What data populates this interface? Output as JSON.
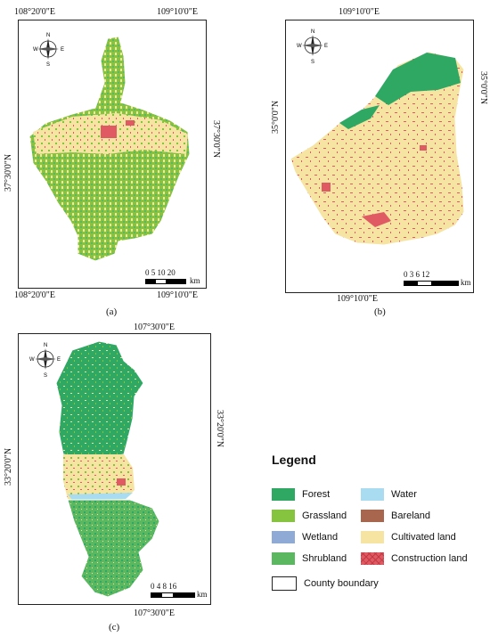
{
  "colors": {
    "forest": "#2fa864",
    "grassland": "#86c440",
    "wetland": "#8faad4",
    "shrubland": "#5cb860",
    "water": "#a9dcf0",
    "bareland": "#a8664f",
    "cultivated": "#f6e4a2",
    "construction": "#e05a63",
    "boundary": "#ffffff"
  },
  "compass": {
    "n": "N",
    "s": "S",
    "e": "E",
    "w": "W"
  },
  "panels": {
    "a": {
      "label": "(a)",
      "top_coord": "108°20'0\"E",
      "top_coord_right": "109°10'0\"E",
      "bottom_coord": "108°20'0\"E",
      "bottom_coord_right": "109°10'0\"E",
      "left_coord": "37°30'0\"N",
      "right_coord": "37°30'0\"N",
      "scale_nums": "0   5  10      20",
      "scale_unit": "km"
    },
    "b": {
      "label": "(b)",
      "top_coord": "109°10'0\"E",
      "bottom_coord": "109°10'0\"E",
      "left_coord": "35°0'0\"N",
      "right_coord": "35°0'0\"N",
      "scale_nums": "0    3    6          12",
      "scale_unit": "km"
    },
    "c": {
      "label": "(c)",
      "top_coord": "107°30'0\"E",
      "bottom_coord": "107°30'0\"E",
      "left_coord": "33°20'0\"N",
      "right_coord": "33°20'0\"N",
      "scale_nums": "0  4  8        16",
      "scale_unit": "km"
    }
  },
  "legend": {
    "title": "Legend",
    "items": [
      {
        "label": "Forest",
        "color": "#2fa864",
        "kind": "forest"
      },
      {
        "label": "Grassland",
        "color": "#86c440",
        "kind": "grassland"
      },
      {
        "label": "Wetland",
        "color": "#8faad4",
        "kind": "wetland"
      },
      {
        "label": "Shrubland",
        "color": "#5cb860",
        "kind": "shrubland"
      },
      {
        "label": "Water",
        "color": "#a9dcf0",
        "kind": "water"
      },
      {
        "label": "Bareland",
        "color": "#a8664f",
        "kind": "bareland"
      },
      {
        "label": "Cultivated land",
        "color": "#f6e4a2",
        "kind": "cultivated"
      },
      {
        "label": "Construction land",
        "color": "#e05a63",
        "kind": "construction"
      },
      {
        "label": "County boundary",
        "color": "#ffffff",
        "kind": "boundary"
      }
    ]
  }
}
